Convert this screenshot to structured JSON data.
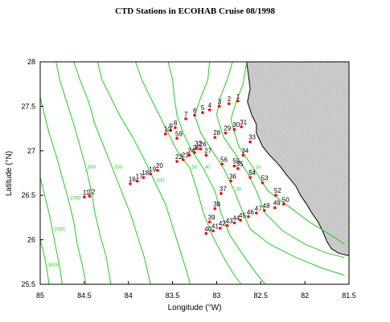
{
  "title": "CTD Stations in ECOHAB  Cruise 08/1998",
  "axes": {
    "xlabel": "Longitude (°W)",
    "ylabel": "Latitude (°N)",
    "x_ticks": [
      "85",
      "84.5",
      "84",
      "83.5",
      "83",
      "82.5",
      "82",
      "81.5"
    ],
    "x_tick_values": [
      85,
      84.5,
      84,
      83.5,
      83,
      82.5,
      82,
      81.5
    ],
    "y_ticks": [
      "28",
      "27.5",
      "27",
      "26.5",
      "26",
      "25.5"
    ],
    "y_tick_values": [
      28,
      27.5,
      27,
      26.5,
      26,
      25.5
    ],
    "xlim": [
      85,
      81.5
    ],
    "ylim": [
      25.5,
      28
    ]
  },
  "colors": {
    "contour": "#22cc22",
    "station": "#ff0000",
    "land": "#d8d8d8",
    "coast": "#000000"
  },
  "contours": [
    {
      "label": "10",
      "path": [
        [
          82.66,
          28.0
        ],
        [
          82.7,
          27.75
        ],
        [
          82.78,
          27.55
        ],
        [
          82.84,
          27.35
        ],
        [
          82.75,
          27.05
        ],
        [
          82.58,
          26.8
        ],
        [
          82.42,
          26.55
        ],
        [
          82.15,
          26.35
        ],
        [
          81.95,
          26.2
        ],
        [
          81.7,
          26.05
        ],
        [
          81.55,
          25.95
        ]
      ]
    },
    {
      "label": "20",
      "path": [
        [
          82.82,
          28.0
        ],
        [
          82.88,
          27.8
        ],
        [
          82.96,
          27.6
        ],
        [
          83.0,
          27.4
        ],
        [
          82.92,
          27.15
        ],
        [
          82.78,
          26.95
        ],
        [
          82.65,
          26.75
        ],
        [
          82.55,
          26.55
        ],
        [
          82.45,
          26.3
        ],
        [
          82.25,
          26.1
        ],
        [
          82.0,
          25.95
        ],
        [
          81.75,
          25.85
        ],
        [
          81.55,
          25.8
        ]
      ]
    },
    {
      "label": "30",
      "path": [
        [
          83.08,
          28.0
        ],
        [
          83.1,
          27.8
        ],
        [
          83.18,
          27.6
        ],
        [
          83.25,
          27.4
        ],
        [
          83.18,
          27.2
        ],
        [
          83.05,
          27.0
        ],
        [
          82.92,
          26.8
        ],
        [
          82.8,
          26.55
        ],
        [
          82.72,
          26.35
        ],
        [
          82.62,
          26.12
        ],
        [
          82.4,
          25.95
        ],
        [
          82.1,
          25.8
        ],
        [
          81.8,
          25.68
        ],
        [
          81.55,
          25.6
        ]
      ]
    },
    {
      "label": "40",
      "path": [
        [
          83.55,
          28.0
        ],
        [
          83.5,
          27.8
        ],
        [
          83.48,
          27.6
        ],
        [
          83.45,
          27.4
        ],
        [
          83.38,
          27.2
        ],
        [
          83.28,
          27.0
        ],
        [
          83.15,
          26.8
        ],
        [
          83.02,
          26.55
        ],
        [
          82.95,
          26.3
        ],
        [
          82.85,
          26.05
        ],
        [
          82.68,
          25.8
        ],
        [
          82.55,
          25.62
        ],
        [
          82.45,
          25.5
        ]
      ]
    },
    {
      "label": "50",
      "path": [
        [
          83.92,
          28.0
        ],
        [
          83.85,
          27.8
        ],
        [
          83.75,
          27.6
        ],
        [
          83.65,
          27.4
        ],
        [
          83.55,
          27.2
        ],
        [
          83.45,
          27.0
        ],
        [
          83.3,
          26.8
        ],
        [
          83.22,
          26.55
        ],
        [
          83.15,
          26.3
        ],
        [
          83.05,
          26.05
        ],
        [
          82.92,
          25.8
        ],
        [
          82.8,
          25.6
        ],
        [
          82.72,
          25.5
        ]
      ]
    },
    {
      "label": "100",
      "path": [
        [
          84.35,
          28.0
        ],
        [
          84.3,
          27.8
        ],
        [
          84.2,
          27.6
        ],
        [
          84.1,
          27.4
        ],
        [
          83.95,
          27.15
        ],
        [
          83.82,
          26.9
        ],
        [
          83.7,
          26.65
        ],
        [
          83.58,
          26.4
        ],
        [
          83.5,
          26.15
        ],
        [
          83.42,
          25.9
        ],
        [
          83.35,
          25.68
        ],
        [
          83.3,
          25.5
        ]
      ]
    },
    {
      "label": "200",
      "path": [
        [
          84.62,
          28.0
        ],
        [
          84.55,
          27.8
        ],
        [
          84.45,
          27.55
        ],
        [
          84.38,
          27.3
        ],
        [
          84.28,
          27.05
        ],
        [
          84.18,
          26.8
        ],
        [
          84.08,
          26.55
        ],
        [
          83.98,
          26.3
        ],
        [
          83.9,
          26.05
        ],
        [
          83.82,
          25.8
        ],
        [
          83.75,
          25.5
        ]
      ]
    },
    {
      "label": "500",
      "path": [
        [
          84.82,
          28.0
        ],
        [
          84.78,
          27.8
        ],
        [
          84.7,
          27.55
        ],
        [
          84.62,
          27.3
        ],
        [
          84.55,
          27.05
        ],
        [
          84.48,
          26.8
        ],
        [
          84.42,
          26.55
        ],
        [
          84.38,
          26.3
        ],
        [
          84.32,
          26.05
        ],
        [
          84.25,
          25.8
        ],
        [
          84.2,
          25.5
        ]
      ]
    },
    {
      "label": "1000",
      "path": [
        [
          85.0,
          27.6
        ],
        [
          84.95,
          27.4
        ],
        [
          84.9,
          27.2
        ],
        [
          84.82,
          26.95
        ],
        [
          84.75,
          26.7
        ],
        [
          84.68,
          26.45
        ],
        [
          84.62,
          26.2
        ],
        [
          84.58,
          25.95
        ],
        [
          84.52,
          25.7
        ],
        [
          84.48,
          25.5
        ]
      ]
    },
    {
      "label": "2000",
      "path": [
        [
          85.0,
          26.7
        ],
        [
          84.95,
          26.5
        ],
        [
          84.9,
          26.3
        ],
        [
          84.86,
          26.1
        ],
        [
          84.82,
          25.9
        ],
        [
          84.78,
          25.7
        ],
        [
          84.75,
          25.5
        ]
      ]
    },
    {
      "label": "3000",
      "path": [
        [
          85.0,
          26.0
        ],
        [
          84.96,
          25.85
        ],
        [
          84.93,
          25.7
        ],
        [
          84.9,
          25.5
        ]
      ]
    }
  ],
  "land": [
    [
      82.66,
      28.0
    ],
    [
      82.64,
      27.85
    ],
    [
      82.62,
      27.7
    ],
    [
      82.65,
      27.55
    ],
    [
      82.6,
      27.4
    ],
    [
      82.55,
      27.3
    ],
    [
      82.55,
      27.2
    ],
    [
      82.48,
      27.05
    ],
    [
      82.4,
      26.95
    ],
    [
      82.3,
      26.85
    ],
    [
      82.2,
      26.72
    ],
    [
      82.1,
      26.6
    ],
    [
      82.05,
      26.5
    ],
    [
      81.98,
      26.4
    ],
    [
      81.92,
      26.3
    ],
    [
      81.85,
      26.2
    ],
    [
      81.8,
      26.1
    ],
    [
      81.75,
      25.98
    ],
    [
      81.7,
      25.9
    ],
    [
      81.62,
      25.85
    ],
    [
      81.5,
      25.82
    ],
    [
      81.5,
      28.0
    ]
  ],
  "stations": [
    {
      "id": "1",
      "lon": 82.76,
      "lat": 27.56
    },
    {
      "id": "2",
      "lon": 82.86,
      "lat": 27.53
    },
    {
      "id": "3",
      "lon": 82.97,
      "lat": 27.5
    },
    {
      "id": "4",
      "lon": 83.08,
      "lat": 27.46
    },
    {
      "id": "5",
      "lon": 83.16,
      "lat": 27.43
    },
    {
      "id": "6",
      "lon": 83.25,
      "lat": 27.4
    },
    {
      "id": "7",
      "lon": 83.35,
      "lat": 27.36
    },
    {
      "id": "8",
      "lon": 83.47,
      "lat": 27.26
    },
    {
      "id": "9",
      "lon": 83.52,
      "lat": 27.23
    },
    {
      "id": "10",
      "lon": 83.58,
      "lat": 27.19
    },
    {
      "id": "11",
      "lon": 84.5,
      "lat": 26.48
    },
    {
      "id": "12",
      "lon": 84.44,
      "lat": 26.49
    },
    {
      "id": "16",
      "lon": 83.98,
      "lat": 26.63
    },
    {
      "id": "17",
      "lon": 83.9,
      "lat": 26.66
    },
    {
      "id": "18",
      "lon": 83.83,
      "lat": 26.7
    },
    {
      "id": "19",
      "lon": 83.75,
      "lat": 26.74
    },
    {
      "id": "20",
      "lon": 83.67,
      "lat": 26.78
    },
    {
      "id": "22",
      "lon": 83.45,
      "lat": 26.88
    },
    {
      "id": "23",
      "lon": 83.38,
      "lat": 26.9
    },
    {
      "id": "24",
      "lon": 83.31,
      "lat": 26.95
    },
    {
      "id": "25",
      "lon": 83.25,
      "lat": 26.98
    },
    {
      "id": "26",
      "lon": 83.18,
      "lat": 27.02
    },
    {
      "id": "27",
      "lon": 83.12,
      "lat": 26.95
    },
    {
      "id": "28",
      "lon": 83.02,
      "lat": 27.15
    },
    {
      "id": "29",
      "lon": 82.9,
      "lat": 27.2
    },
    {
      "id": "30",
      "lon": 82.8,
      "lat": 27.24
    },
    {
      "id": "31",
      "lon": 82.72,
      "lat": 27.27
    },
    {
      "id": "32",
      "lon": 83.23,
      "lat": 27.03
    },
    {
      "id": "33",
      "lon": 82.62,
      "lat": 27.1
    },
    {
      "id": "34",
      "lon": 82.7,
      "lat": 26.95
    },
    {
      "id": "35",
      "lon": 82.76,
      "lat": 26.8
    },
    {
      "id": "36",
      "lon": 82.84,
      "lat": 26.66
    },
    {
      "id": "37",
      "lon": 82.95,
      "lat": 26.52
    },
    {
      "id": "38",
      "lon": 83.02,
      "lat": 26.35
    },
    {
      "id": "39",
      "lon": 83.08,
      "lat": 26.2
    },
    {
      "id": "40",
      "lon": 83.12,
      "lat": 26.07
    },
    {
      "id": "41",
      "lon": 83.04,
      "lat": 26.1
    },
    {
      "id": "42",
      "lon": 82.96,
      "lat": 26.13
    },
    {
      "id": "43",
      "lon": 82.88,
      "lat": 26.16
    },
    {
      "id": "44",
      "lon": 82.8,
      "lat": 26.19
    },
    {
      "id": "45",
      "lon": 82.73,
      "lat": 26.22
    },
    {
      "id": "46",
      "lon": 82.64,
      "lat": 26.26
    },
    {
      "id": "47",
      "lon": 82.55,
      "lat": 26.3
    },
    {
      "id": "48",
      "lon": 82.46,
      "lat": 26.33
    },
    {
      "id": "49",
      "lon": 82.34,
      "lat": 26.36
    },
    {
      "id": "50",
      "lon": 82.24,
      "lat": 26.4
    },
    {
      "id": "52",
      "lon": 82.33,
      "lat": 26.5
    },
    {
      "id": "53",
      "lon": 82.48,
      "lat": 26.64
    },
    {
      "id": "54",
      "lon": 82.62,
      "lat": 26.7
    },
    {
      "id": "55",
      "lon": 82.8,
      "lat": 26.83
    },
    {
      "id": "56",
      "lon": 82.94,
      "lat": 26.85
    },
    {
      "id": "59",
      "lon": 83.45,
      "lat": 27.14
    }
  ]
}
